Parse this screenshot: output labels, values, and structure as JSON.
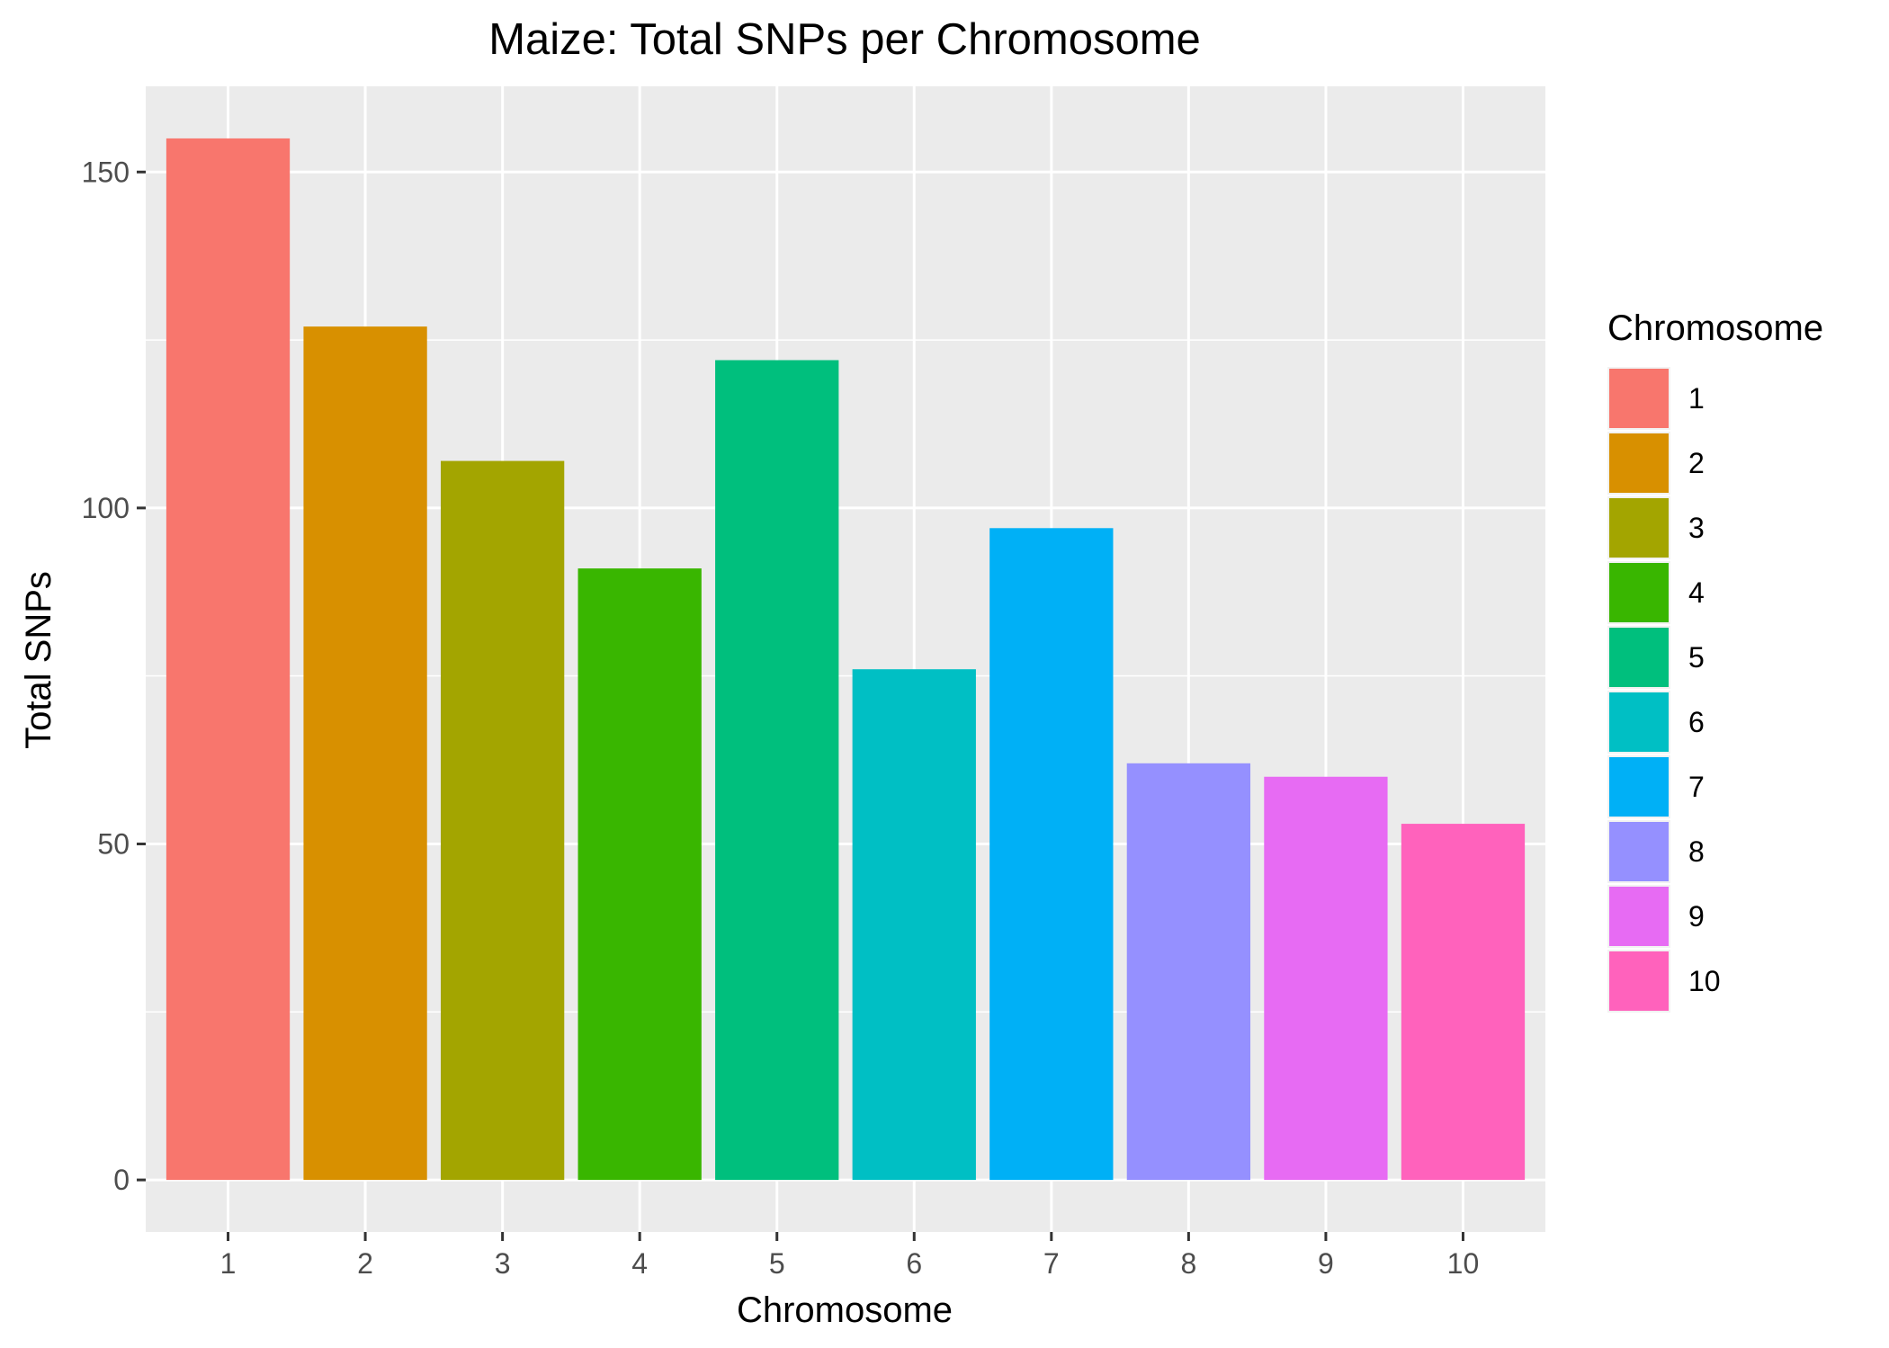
{
  "chart_data": {
    "type": "bar",
    "title": "Maize: Total SNPs per Chromosome",
    "xlabel": "Chromosome",
    "ylabel": "Total SNPs",
    "categories": [
      "1",
      "2",
      "3",
      "4",
      "5",
      "6",
      "7",
      "8",
      "9",
      "10"
    ],
    "values": [
      155,
      127,
      107,
      91,
      122,
      76,
      97,
      62,
      60,
      53
    ],
    "colors": [
      "#F8766D",
      "#D89000",
      "#A3A500",
      "#39B600",
      "#00BF7D",
      "#00BFC4",
      "#00B0F6",
      "#9590FF",
      "#E76BF3",
      "#FF62BC"
    ],
    "ylim": [
      -7.75,
      162.75
    ],
    "yticks": [
      0,
      50,
      100,
      150
    ],
    "ytick_labels": [
      "0",
      "50",
      "100",
      "150"
    ],
    "y_minor_ticks": [
      25,
      75,
      125
    ],
    "grid": true,
    "panel_background": "#EBEBEB",
    "grid_color": "#FFFFFF",
    "legend": {
      "title": "Chromosome",
      "position": "right",
      "labels": [
        "1",
        "2",
        "3",
        "4",
        "5",
        "6",
        "7",
        "8",
        "9",
        "10"
      ]
    }
  }
}
